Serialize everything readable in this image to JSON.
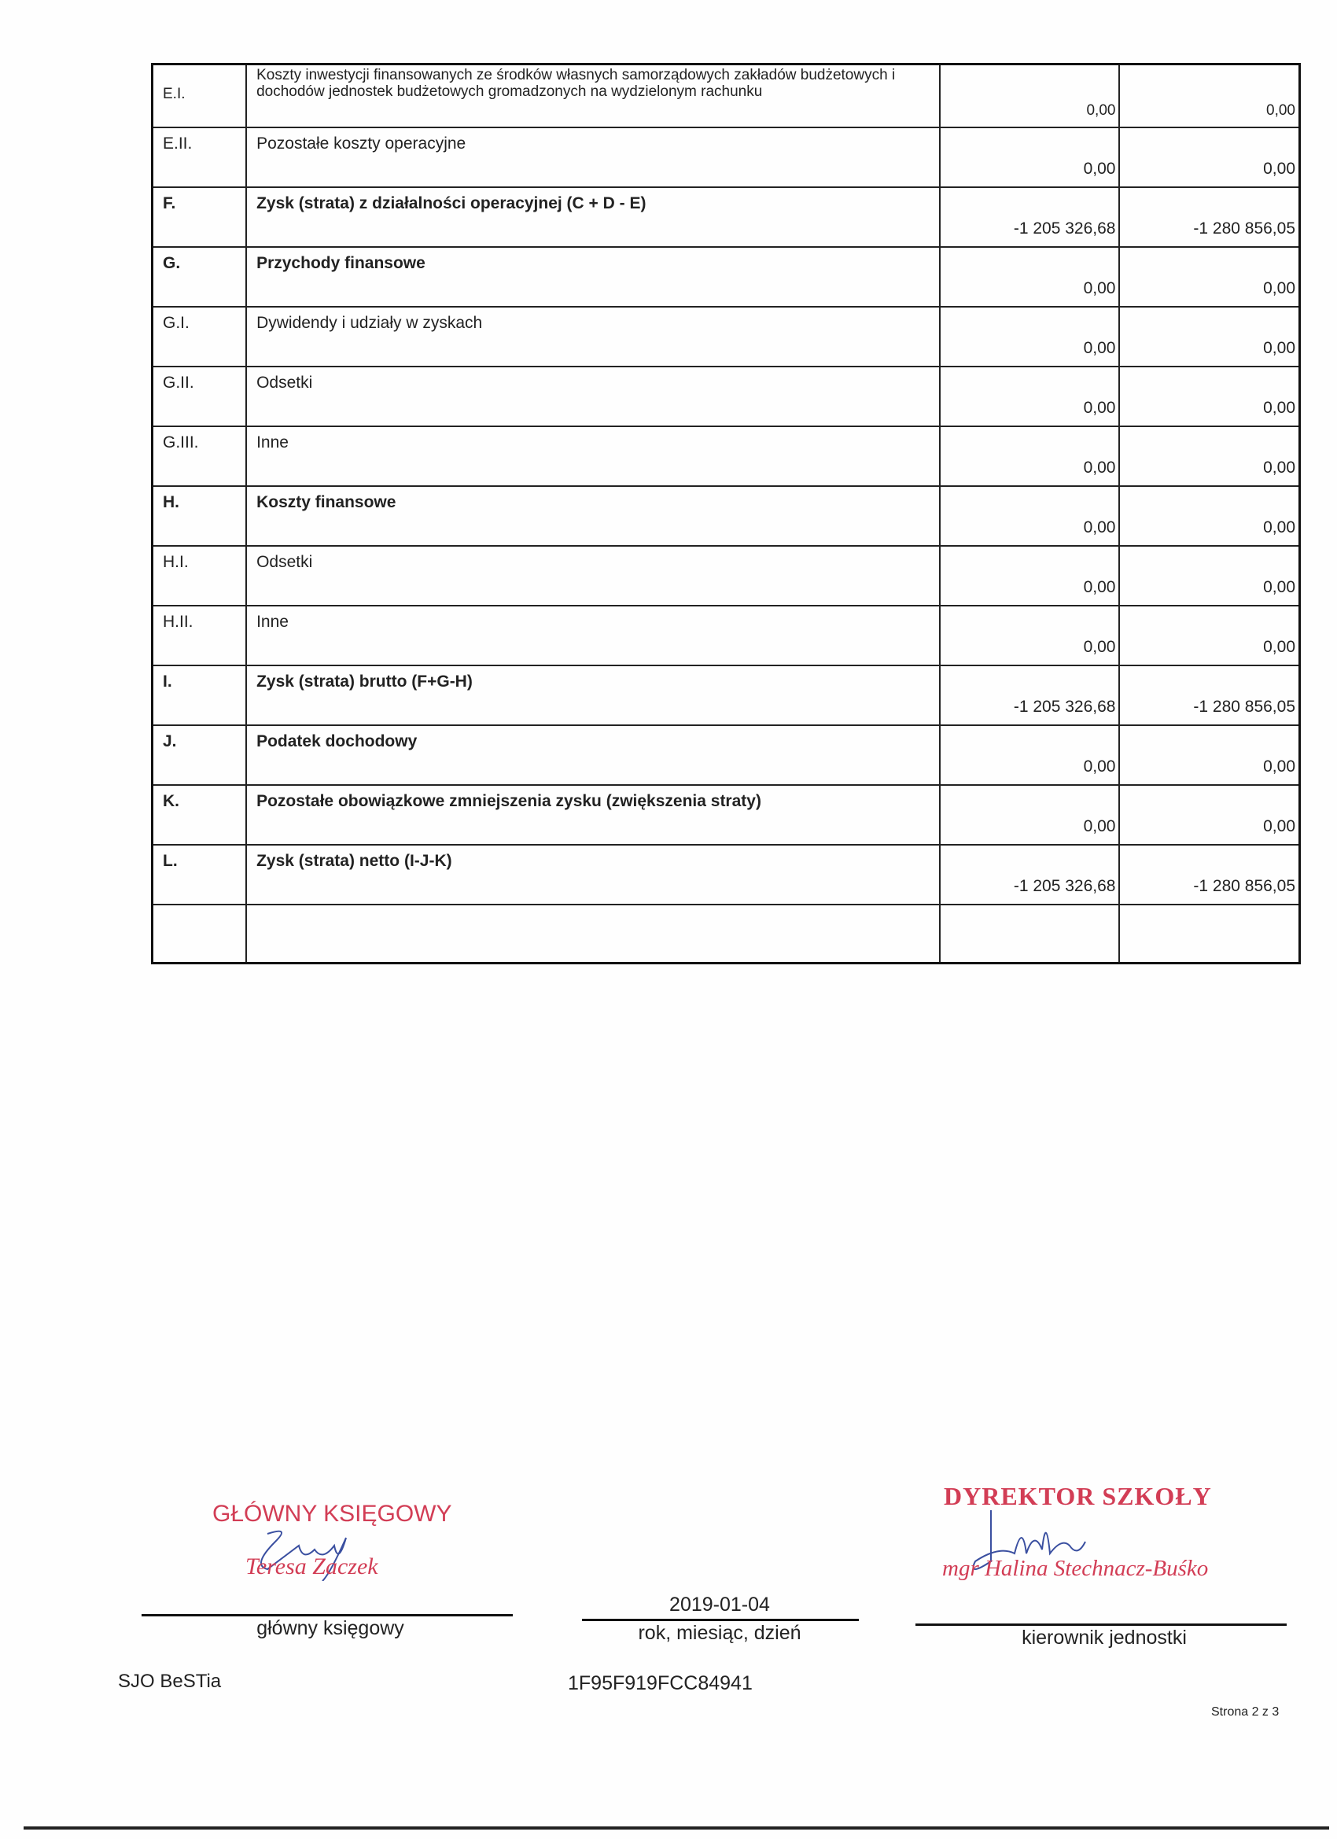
{
  "table": {
    "rows": [
      {
        "code": "E.I.",
        "label": "Koszty inwestycji finansowanych ze środków własnych samorządowych zakładów budżetowych i dochodów jednostek budżetowych gromadzonych na wydzielonym rachunku",
        "v1": "0,00",
        "v2": "0,00",
        "bold": false
      },
      {
        "code": "E.II.",
        "label": "Pozostałe koszty operacyjne",
        "v1": "0,00",
        "v2": "0,00",
        "bold": false
      },
      {
        "code": "F.",
        "label": "Zysk (strata) z działalności operacyjnej (C + D - E)",
        "v1": "-1 205 326,68",
        "v2": "-1 280 856,05",
        "bold": true
      },
      {
        "code": "G.",
        "label": "Przychody finansowe",
        "v1": "0,00",
        "v2": "0,00",
        "bold": true
      },
      {
        "code": "G.I.",
        "label": "Dywidendy i udziały w zyskach",
        "v1": "0,00",
        "v2": "0,00",
        "bold": false
      },
      {
        "code": "G.II.",
        "label": "Odsetki",
        "v1": "0,00",
        "v2": "0,00",
        "bold": false
      },
      {
        "code": "G.III.",
        "label": "Inne",
        "v1": "0,00",
        "v2": "0,00",
        "bold": false
      },
      {
        "code": "H.",
        "label": "Koszty finansowe",
        "v1": "0,00",
        "v2": "0,00",
        "bold": true
      },
      {
        "code": "H.I.",
        "label": "Odsetki",
        "v1": "0,00",
        "v2": "0,00",
        "bold": false
      },
      {
        "code": "H.II.",
        "label": "Inne",
        "v1": "0,00",
        "v2": "0,00",
        "bold": false
      },
      {
        "code": "I.",
        "label": "Zysk (strata) brutto (F+G-H)",
        "v1": "-1 205 326,68",
        "v2": "-1 280 856,05",
        "bold": true
      },
      {
        "code": "J.",
        "label": "Podatek dochodowy",
        "v1": "0,00",
        "v2": "0,00",
        "bold": true
      },
      {
        "code": "K.",
        "label": "Pozostałe obowiązkowe zmniejszenia zysku (zwiększenia straty)",
        "v1": "0,00",
        "v2": "0,00",
        "bold": true
      },
      {
        "code": "L.",
        "label": "Zysk (strata) netto (I-J-K)",
        "v1": "-1 205 326,68",
        "v2": "-1 280 856,05",
        "bold": true
      }
    ]
  },
  "signatures": {
    "accountant_stamp_title": "GŁÓWNY KSIĘGOWY",
    "accountant_stamp_name": "Teresa Zaczek",
    "accountant_caption": "główny księgowy",
    "date": "2019-01-04",
    "date_caption": "rok, miesiąc, dzień",
    "director_stamp_title": "DYREKTOR SZKOŁY",
    "director_stamp_name": "mgr Halina Stechnacz-Buśko",
    "director_caption": "kierownik jednostki"
  },
  "footer": {
    "software": "SJO BeSTia",
    "code": "1F95F919FCC84941",
    "page": "Strona 2 z 3"
  },
  "colors": {
    "stamp": "#d23d55",
    "signature_ink": "#3a4fa0"
  }
}
